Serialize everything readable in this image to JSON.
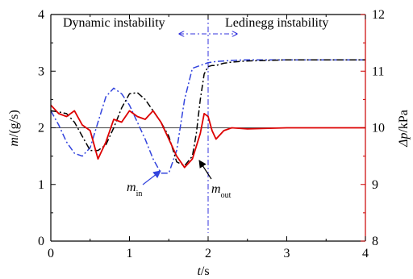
{
  "chart_data": {
    "type": "line",
    "x_axis": {
      "label_main": "t",
      "label_unit": "/s",
      "range": [
        0,
        4
      ],
      "ticks": [
        0,
        1,
        2,
        3,
        4
      ],
      "tick_labels": [
        "0",
        "1",
        "2",
        "3",
        "4"
      ]
    },
    "y_left_axis": {
      "label_main": "m",
      "label_unit": "/(g/s)",
      "range": [
        0,
        4
      ],
      "ticks": [
        0,
        1,
        2,
        3,
        4
      ],
      "tick_labels": [
        "0",
        "1",
        "2",
        "3",
        "4"
      ]
    },
    "y_right_axis": {
      "label_main": "Δp",
      "label_unit": "/kPa",
      "range": [
        8,
        12
      ],
      "ticks": [
        8,
        9,
        10,
        11,
        12
      ],
      "tick_labels": [
        "8",
        "9",
        "10",
        "11",
        "12"
      ],
      "color": "#cc0000"
    },
    "regions": {
      "left_label": "Dynamic instability",
      "right_label": "Ledinegg instability",
      "boundary_x": 2.0,
      "boundary_color": "#3333dd"
    },
    "reference_line_y": 2.0,
    "series": [
      {
        "id": "m_in",
        "axis": "left",
        "color": "#3344dd",
        "dash": "dashdot",
        "x": [
          0,
          0.1,
          0.2,
          0.3,
          0.4,
          0.5,
          0.6,
          0.7,
          0.8,
          0.9,
          1.0,
          1.1,
          1.2,
          1.3,
          1.4,
          1.5,
          1.6,
          1.7,
          1.8,
          1.9,
          2.0,
          2.1,
          2.2,
          2.3,
          2.5,
          3.0,
          3.5,
          4.0
        ],
        "y": [
          2.3,
          2.05,
          1.75,
          1.55,
          1.5,
          1.65,
          2.1,
          2.55,
          2.7,
          2.6,
          2.4,
          2.1,
          1.8,
          1.45,
          1.2,
          1.2,
          1.6,
          2.5,
          3.05,
          3.1,
          3.15,
          3.17,
          3.18,
          3.19,
          3.2,
          3.2,
          3.2,
          3.2
        ]
      },
      {
        "id": "m_out",
        "axis": "left",
        "color": "#000000",
        "dash": "dashdot",
        "x": [
          0,
          0.1,
          0.2,
          0.3,
          0.4,
          0.5,
          0.6,
          0.7,
          0.8,
          0.9,
          1.0,
          1.1,
          1.2,
          1.3,
          1.4,
          1.5,
          1.6,
          1.7,
          1.8,
          1.85,
          1.9,
          1.95,
          2.0,
          2.05,
          2.1,
          2.2,
          2.3,
          2.5,
          3.0,
          3.5,
          4.0
        ],
        "y": [
          2.3,
          2.28,
          2.25,
          2.1,
          1.85,
          1.6,
          1.6,
          1.7,
          2.0,
          2.35,
          2.6,
          2.62,
          2.5,
          2.3,
          2.1,
          1.85,
          1.4,
          1.33,
          1.5,
          1.9,
          2.5,
          2.95,
          3.08,
          3.1,
          3.1,
          3.14,
          3.16,
          3.18,
          3.2,
          3.2,
          3.2
        ]
      },
      {
        "id": "dp",
        "axis": "right",
        "color": "#dd0000",
        "dash": "solid",
        "x": [
          0,
          0.1,
          0.2,
          0.3,
          0.4,
          0.5,
          0.6,
          0.7,
          0.8,
          0.9,
          1.0,
          1.1,
          1.2,
          1.3,
          1.4,
          1.5,
          1.6,
          1.7,
          1.8,
          1.9,
          1.95,
          2.0,
          2.05,
          2.1,
          2.2,
          2.3,
          2.5,
          3.0,
          4.0
        ],
        "y": [
          10.4,
          10.25,
          10.2,
          10.3,
          10.05,
          9.95,
          9.45,
          9.75,
          10.15,
          10.1,
          10.3,
          10.2,
          10.15,
          10.3,
          10.1,
          9.8,
          9.5,
          9.3,
          9.45,
          9.9,
          10.25,
          10.2,
          9.95,
          9.8,
          9.95,
          10.0,
          9.98,
          10.0,
          10.0
        ]
      }
    ],
    "annotations": [
      {
        "target": "m_in",
        "text_main": "m",
        "text_sub": "in",
        "arrow_color": "#3344dd"
      },
      {
        "target": "m_out",
        "text_main": "m",
        "text_sub": "out",
        "arrow_color": "#000000"
      }
    ]
  }
}
